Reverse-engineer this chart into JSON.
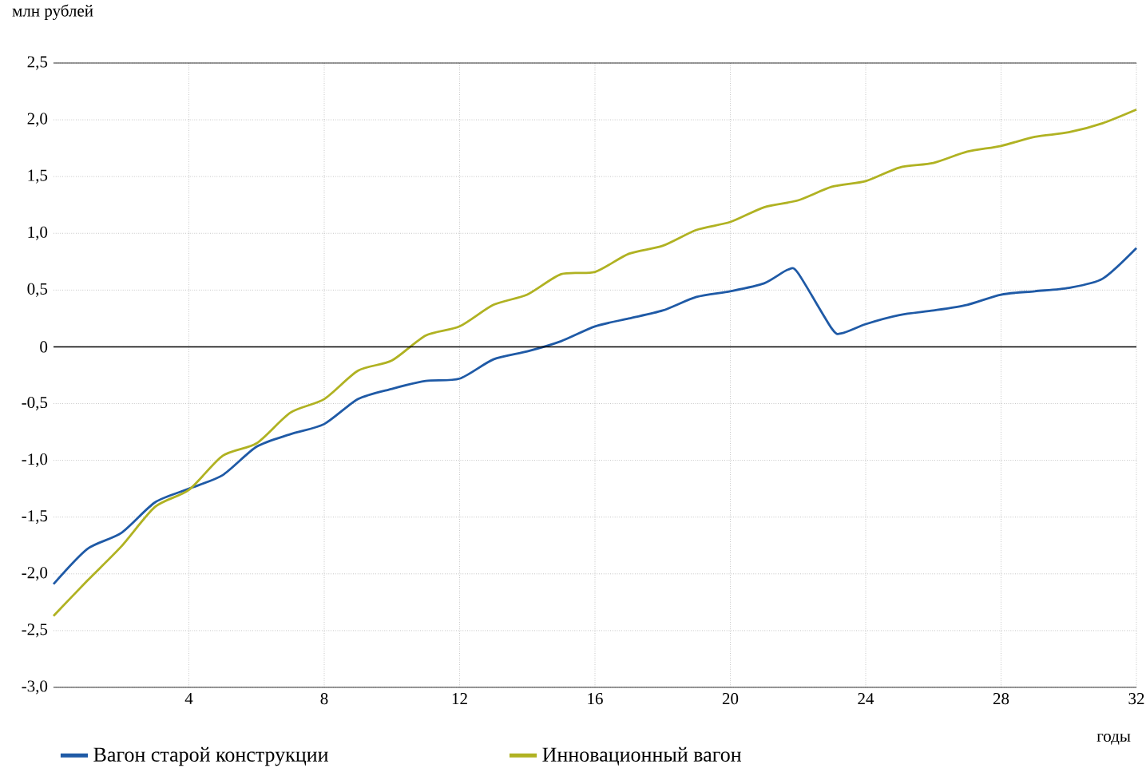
{
  "chart_data": {
    "type": "line",
    "ylabel": "млн рублей",
    "xlabel": "годы",
    "x": [
      0,
      1,
      2,
      3,
      4,
      5,
      6,
      7,
      8,
      9,
      10,
      11,
      12,
      13,
      14,
      15,
      16,
      17,
      18,
      19,
      20,
      21,
      22,
      23,
      24,
      25,
      26,
      27,
      28,
      29,
      30,
      31,
      32
    ],
    "xlim": [
      0,
      32
    ],
    "xticks": [
      4,
      8,
      12,
      16,
      20,
      24,
      28,
      32
    ],
    "ylim": [
      -3,
      2.5
    ],
    "yticks": [
      {
        "value": -3,
        "label": "-3,0"
      },
      {
        "value": -2.5,
        "label": "-2,5"
      },
      {
        "value": -2,
        "label": "-2,0"
      },
      {
        "value": -1.5,
        "label": "-1,5"
      },
      {
        "value": -1,
        "label": "-1,0"
      },
      {
        "value": -0.5,
        "label": "-0,5"
      },
      {
        "value": 0,
        "label": "0"
      },
      {
        "value": 0.5,
        "label": "0,5"
      },
      {
        "value": 1,
        "label": "1,0"
      },
      {
        "value": 1.5,
        "label": "1,5"
      },
      {
        "value": 2,
        "label": "2,0"
      },
      {
        "value": 2.5,
        "label": "2,5"
      }
    ],
    "grid": true,
    "legend": "bottom",
    "ref_lines": [
      {
        "axis": "y",
        "value": 0,
        "color": "#000000"
      }
    ],
    "series": [
      {
        "name": "Вагон старой конструкции",
        "color": "#1f5aa6",
        "x": [
          0,
          1,
          2,
          3,
          4,
          5,
          6,
          7,
          8,
          9,
          10,
          11,
          12,
          13,
          14,
          15,
          16,
          17,
          18,
          19,
          20,
          21,
          21.7,
          22,
          23,
          23.3,
          24,
          25,
          26,
          27,
          28,
          29,
          30,
          31,
          32
        ],
        "values": [
          -2.09,
          -1.78,
          -1.64,
          -1.37,
          -1.25,
          -1.13,
          -0.88,
          -0.77,
          -0.68,
          -0.46,
          -0.37,
          -0.3,
          -0.28,
          -0.11,
          -0.04,
          0.05,
          0.18,
          0.25,
          0.32,
          0.44,
          0.49,
          0.56,
          0.68,
          0.65,
          0.16,
          0.12,
          0.2,
          0.28,
          0.32,
          0.37,
          0.46,
          0.49,
          0.52,
          0.6,
          0.87
        ]
      },
      {
        "name": "Инновационный вагон",
        "color": "#b0b222",
        "values": [
          -2.37,
          -2.06,
          -1.76,
          -1.41,
          -1.26,
          -0.96,
          -0.85,
          -0.58,
          -0.46,
          -0.21,
          -0.12,
          0.1,
          0.18,
          0.37,
          0.46,
          0.64,
          0.66,
          0.82,
          0.89,
          1.03,
          1.1,
          1.23,
          1.29,
          1.41,
          1.46,
          1.58,
          1.62,
          1.72,
          1.77,
          1.85,
          1.89,
          1.97,
          2.09
        ]
      }
    ]
  }
}
